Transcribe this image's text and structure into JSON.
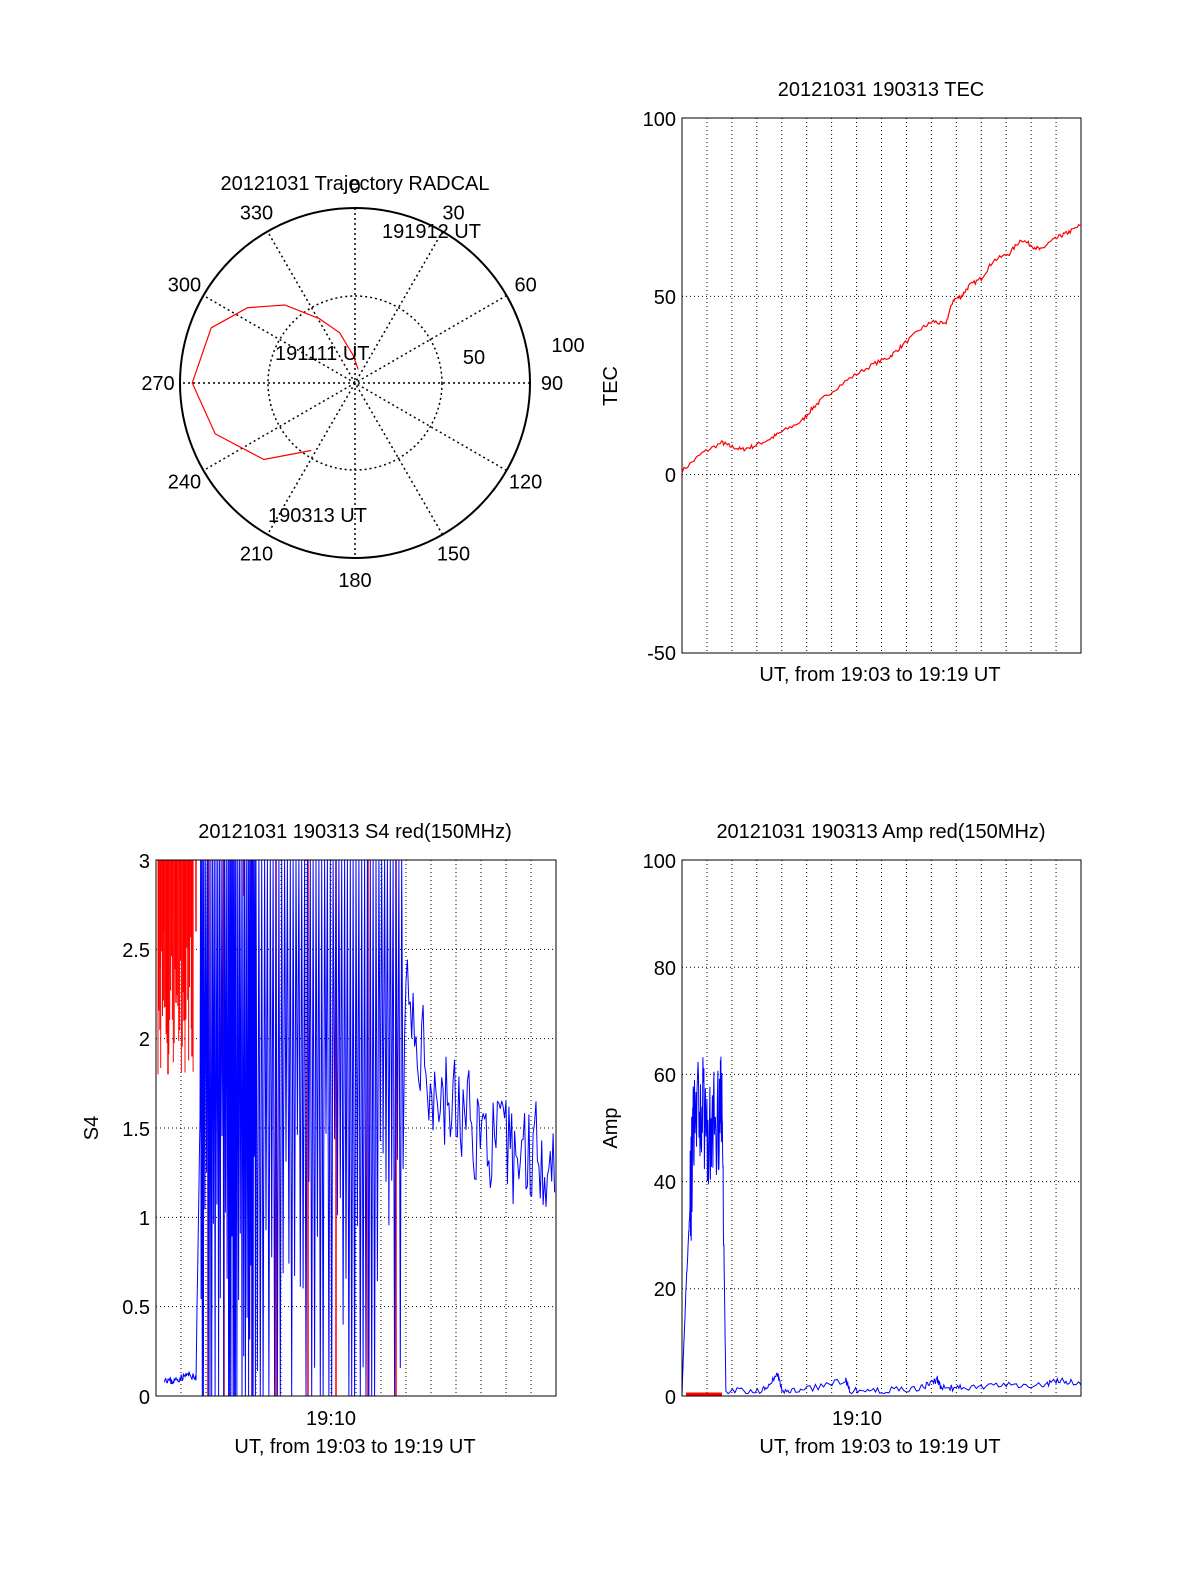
{
  "chart_data": [
    {
      "type": "polar",
      "title": "20121031 Trajectory RADCAL",
      "angle_labels": [
        "0",
        "30",
        "60",
        "90",
        "120",
        "150",
        "180",
        "210",
        "240",
        "270",
        "300",
        "330"
      ],
      "radius_labels": [
        "50",
        "100"
      ],
      "rlim": [
        0,
        100
      ],
      "trajectory": {
        "color": "#ff0000",
        "points": [
          {
            "az": 213,
            "el": 54
          },
          {
            "az": 230,
            "el": 32
          },
          {
            "az": 250,
            "el": 15
          },
          {
            "az": 270,
            "el": 7
          },
          {
            "az": 291,
            "el": 12
          },
          {
            "az": 305,
            "el": 25
          },
          {
            "az": 318,
            "el": 40
          },
          {
            "az": 331,
            "el": 58
          },
          {
            "az": 343,
            "el": 70
          },
          {
            "az": 356,
            "el": 84
          },
          {
            "az": 13,
            "el": 92
          }
        ]
      },
      "annotations": [
        {
          "text": "190313 UT",
          "az": 213,
          "el": 54
        },
        {
          "text": "191111 UT",
          "az": 291,
          "el": 65
        },
        {
          "text": "191912 UT",
          "az": 13,
          "el": 92
        }
      ]
    },
    {
      "type": "line",
      "title": "20121031 190313 TEC",
      "xlabel": "UT, from 19:03 to 19:19 UT",
      "ylabel": "TEC",
      "ylim": [
        -50,
        100
      ],
      "yticks": [
        "100",
        "50",
        "0",
        "-50"
      ],
      "grid": true,
      "series": [
        {
          "color": "#ff0000",
          "x": [
            0,
            0.05,
            0.1,
            0.12,
            0.15,
            0.18,
            0.22,
            0.25,
            0.3,
            0.33,
            0.36,
            0.42,
            0.48,
            0.52,
            0.55,
            0.6,
            0.63,
            0.66,
            0.68,
            0.7,
            0.72,
            0.75,
            0.78,
            0.82,
            0.85,
            0.88,
            0.9,
            0.92,
            0.95,
            0.97,
            1.0
          ],
          "y": [
            1,
            6,
            9,
            8,
            7,
            8,
            10,
            12,
            15,
            19,
            22,
            27,
            31,
            33,
            36,
            41,
            43,
            42,
            49,
            50,
            53,
            55,
            60,
            62,
            66,
            64,
            63,
            65,
            67,
            68,
            70
          ]
        }
      ]
    },
    {
      "type": "line",
      "title": "20121031 190313 S4 red(150MHz)",
      "xlabel": "UT, from 19:03 to 19:19 UT",
      "ylabel": "S4",
      "xtick_label": "19:10",
      "ylim": [
        0,
        3
      ],
      "yticks": [
        "3",
        "2.5",
        "2",
        "1.5",
        "1",
        "0.5",
        "0"
      ],
      "grid": true,
      "series": [
        {
          "color": "#ff0000",
          "description_free": true,
          "x": [
            0.01,
            0.02,
            0.03,
            0.04,
            0.05,
            0.06,
            0.07,
            0.08,
            0.09,
            0.1,
            0.13,
            0.17,
            0.22,
            0.24,
            0.26,
            0.3,
            0.34,
            0.38,
            0.45,
            0.5,
            0.53,
            0.56,
            0.6,
            0.66,
            0.79
          ],
          "y": [
            2.4,
            2.6,
            1.8,
            2.7,
            2.2,
            2.9,
            2.1,
            2.5,
            1.9,
            2.6,
            0,
            0,
            2.8,
            0,
            3,
            0,
            3,
            0,
            0,
            3,
            0,
            3,
            0,
            3,
            3
          ]
        },
        {
          "color": "#0000ff",
          "x": [
            0.02,
            0.04,
            0.06,
            0.08,
            0.1,
            0.12,
            0.15,
            0.18,
            0.2,
            0.23,
            0.25,
            0.3,
            0.35,
            0.4,
            0.45,
            0.5,
            0.55,
            0.6,
            0.65,
            0.7,
            0.75,
            0.8,
            0.85,
            0.9,
            0.95,
            1.0
          ],
          "y": [
            0.1,
            0.08,
            0.1,
            0.12,
            0.1,
            3,
            0,
            3,
            0,
            0.4,
            3,
            0,
            3,
            0,
            3,
            0,
            3,
            2.4,
            2.0,
            1.7,
            1.6,
            1.5,
            1.4,
            1.35,
            1.4,
            1.3
          ]
        }
      ]
    },
    {
      "type": "line",
      "title": "20121031 190313 Amp red(150MHz)",
      "xlabel": "UT, from 19:03 to 19:19 UT",
      "ylabel": "Amp",
      "xtick_label": "19:10",
      "ylim": [
        0,
        100
      ],
      "yticks": [
        "100",
        "80",
        "60",
        "40",
        "20",
        "0"
      ],
      "grid": true,
      "series": [
        {
          "color": "#ff0000",
          "x": [
            0.01,
            0.1
          ],
          "y": [
            0.5,
            0.5
          ]
        },
        {
          "color": "#0000ff",
          "x": [
            0.0,
            0.01,
            0.02,
            0.03,
            0.05,
            0.07,
            0.09,
            0.1,
            0.11,
            0.2,
            0.24,
            0.25,
            0.3,
            0.41,
            0.42,
            0.5,
            0.6,
            0.64,
            0.65,
            0.7,
            0.8,
            0.9,
            0.95,
            1.0
          ],
          "y": [
            0,
            20,
            35,
            50,
            55,
            48,
            52,
            55,
            1,
            1,
            4,
            1,
            1,
            3,
            1,
            1,
            1.5,
            3,
            1.5,
            1.5,
            2,
            2,
            3,
            2
          ]
        }
      ]
    }
  ]
}
